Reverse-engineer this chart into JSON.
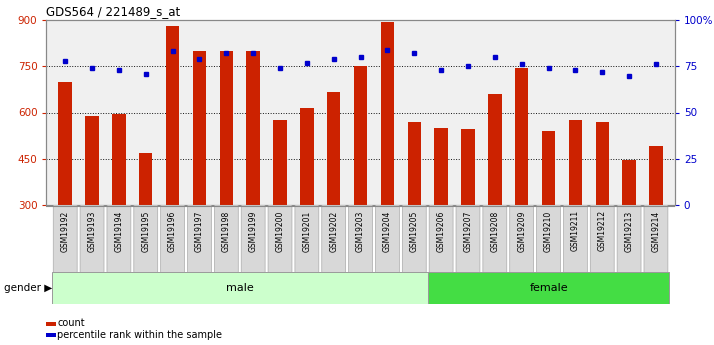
{
  "title": "GDS564 / 221489_s_at",
  "samples": [
    "GSM19192",
    "GSM19193",
    "GSM19194",
    "GSM19195",
    "GSM19196",
    "GSM19197",
    "GSM19198",
    "GSM19199",
    "GSM19200",
    "GSM19201",
    "GSM19202",
    "GSM19203",
    "GSM19204",
    "GSM19205",
    "GSM19206",
    "GSM19207",
    "GSM19208",
    "GSM19209",
    "GSM19210",
    "GSM19211",
    "GSM19212",
    "GSM19213",
    "GSM19214"
  ],
  "counts": [
    700,
    590,
    595,
    470,
    880,
    800,
    800,
    800,
    575,
    615,
    665,
    750,
    895,
    570,
    550,
    545,
    660,
    745,
    540,
    575,
    570,
    445,
    490
  ],
  "percentiles": [
    78,
    74,
    73,
    71,
    83,
    79,
    82,
    82,
    74,
    77,
    79,
    80,
    84,
    82,
    73,
    75,
    80,
    76,
    74,
    73,
    72,
    70,
    76
  ],
  "gender": [
    "male",
    "male",
    "male",
    "male",
    "male",
    "male",
    "male",
    "male",
    "male",
    "male",
    "male",
    "male",
    "male",
    "male",
    "female",
    "female",
    "female",
    "female",
    "female",
    "female",
    "female",
    "female",
    "female"
  ],
  "ylim_left": [
    300,
    900
  ],
  "ylim_right": [
    0,
    100
  ],
  "yticks_left": [
    300,
    450,
    600,
    750,
    900
  ],
  "yticks_right": [
    0,
    25,
    50,
    75,
    100
  ],
  "bar_color": "#cc2200",
  "dot_color": "#0000cc",
  "male_bg": "#ccffcc",
  "female_bg": "#44dd44",
  "tick_label_bg": "#d8d8d8",
  "grid_color": "#111111",
  "plot_bg": "#f0f0f0",
  "border_color": "#888888"
}
